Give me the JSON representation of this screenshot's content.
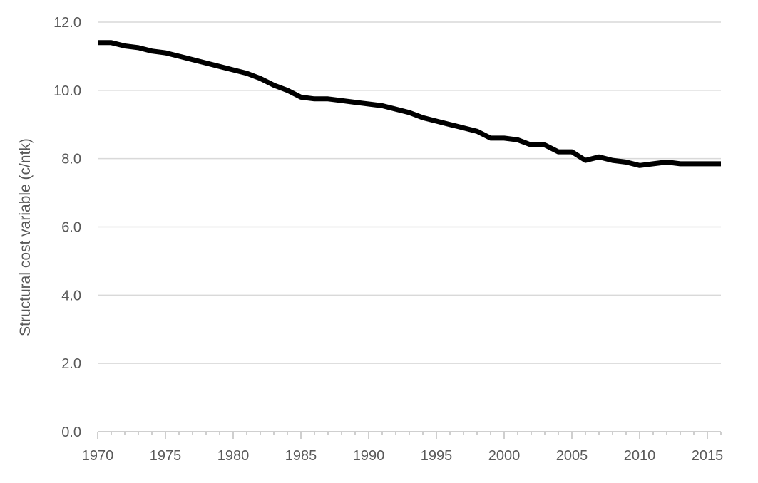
{
  "chart_data": {
    "type": "line",
    "title": "",
    "xlabel": "",
    "ylabel": "Structural cost  variable (c/ntk)",
    "xlim": [
      1970,
      2016
    ],
    "ylim": [
      0,
      12
    ],
    "x_ticks": [
      "1970",
      "1975",
      "1980",
      "1985",
      "1990",
      "1995",
      "2000",
      "2005",
      "2010",
      "2015"
    ],
    "y_ticks": [
      "0.0",
      "2.0",
      "4.0",
      "6.0",
      "8.0",
      "10.0",
      "12.0"
    ],
    "grid": "horizontal",
    "legend": "none",
    "line_color": "#000000",
    "series": [
      {
        "x": [
          1970,
          1971,
          1972,
          1973,
          1974,
          1975,
          1976,
          1977,
          1978,
          1979,
          1980,
          1981,
          1982,
          1983,
          1984,
          1985,
          1986,
          1987,
          1988,
          1989,
          1990,
          1991,
          1992,
          1993,
          1994,
          1995,
          1996,
          1997,
          1998,
          1999,
          2000,
          2001,
          2002,
          2003,
          2004,
          2005,
          2006,
          2007,
          2008,
          2009,
          2010,
          2011,
          2012,
          2013,
          2014,
          2015,
          2016
        ],
        "values": [
          11.4,
          11.4,
          11.3,
          11.25,
          11.15,
          11.1,
          11.0,
          10.9,
          10.8,
          10.7,
          10.6,
          10.5,
          10.35,
          10.15,
          10.0,
          9.8,
          9.75,
          9.75,
          9.7,
          9.65,
          9.6,
          9.55,
          9.45,
          9.35,
          9.2,
          9.1,
          9.0,
          8.9,
          8.8,
          8.6,
          8.6,
          8.55,
          8.4,
          8.4,
          8.2,
          8.2,
          7.95,
          8.05,
          7.95,
          7.9,
          7.8,
          7.85,
          7.9,
          7.85,
          7.85,
          7.85,
          7.85
        ]
      }
    ]
  }
}
